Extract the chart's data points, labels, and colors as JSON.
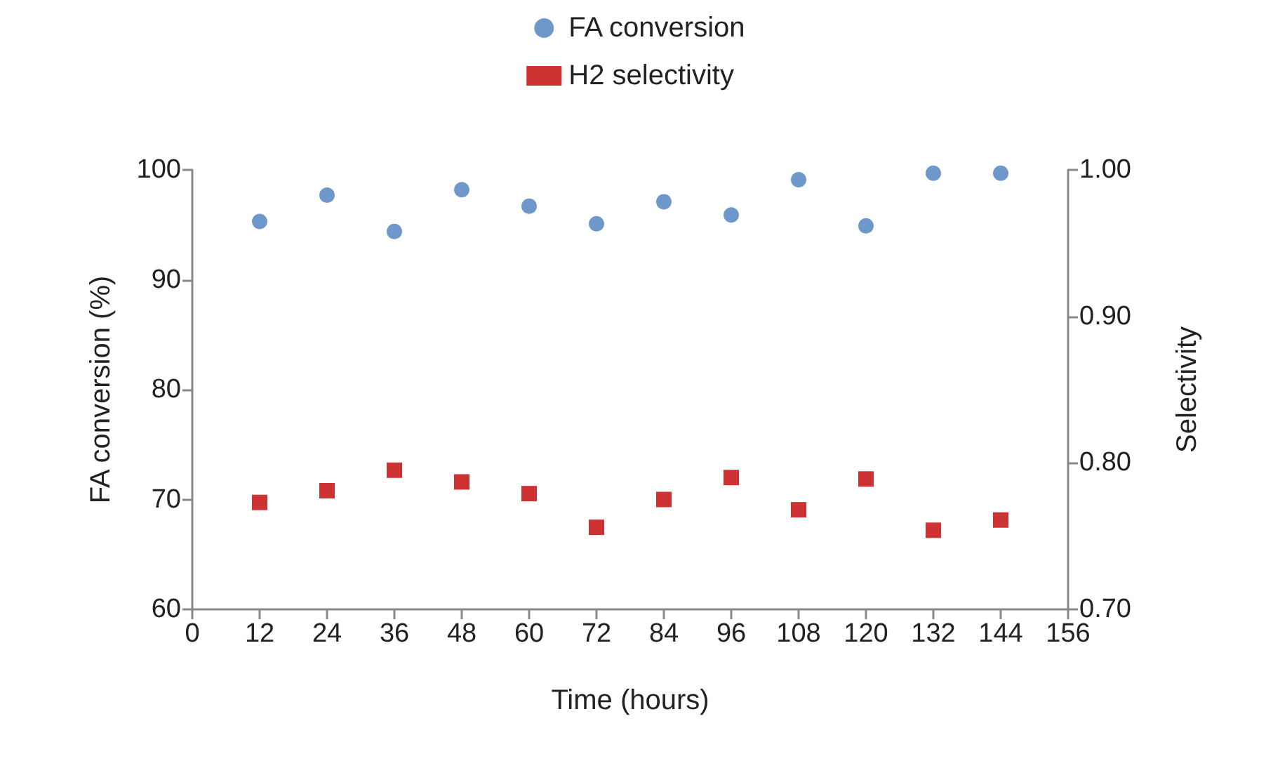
{
  "chart_data": {
    "type": "scatter",
    "xlabel": "Time (hours)",
    "ylabel": "FA conversion (%)",
    "y2label": "Selectivity",
    "x": [
      12,
      24,
      36,
      48,
      60,
      72,
      84,
      96,
      108,
      120,
      132,
      144
    ],
    "series": [
      {
        "name": "FA conversion",
        "color": "#4a7ebb",
        "marker": "circle",
        "values": [
          95.3,
          97.7,
          94.4,
          98.2,
          96.7,
          95.1,
          97.1,
          95.9,
          99.1,
          94.9,
          99.7,
          99.7
        ]
      },
      {
        "name": "H2 selectivity",
        "color": "#c00000",
        "marker": "square",
        "axis": "y2",
        "values": [
          0.773,
          0.781,
          0.795,
          0.787,
          0.779,
          0.756,
          0.775,
          0.79,
          0.768,
          0.789,
          0.754,
          0.761
        ]
      }
    ],
    "xlim": [
      0,
      156
    ],
    "xticks": [
      0,
      12,
      24,
      36,
      48,
      60,
      72,
      84,
      96,
      108,
      120,
      132,
      144,
      156
    ],
    "ylim": [
      60,
      100
    ],
    "yticks": [
      60,
      70,
      80,
      90,
      100
    ],
    "y2lim": [
      0.7,
      1.0
    ],
    "y2ticks": [
      {
        "value": 0.7,
        "label": "0.70"
      },
      {
        "value": 0.8,
        "label": "0.80"
      },
      {
        "value": 0.9,
        "label": "0.90"
      },
      {
        "value": 1.0,
        "label": "1.00"
      }
    ],
    "legend": "top",
    "grid": false
  }
}
